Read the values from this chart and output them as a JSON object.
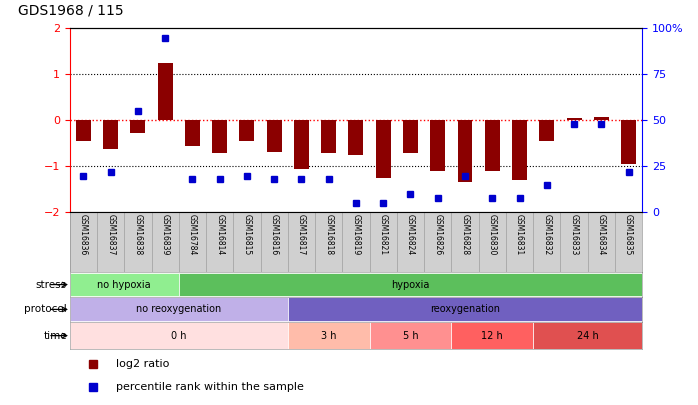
{
  "title": "GDS1968 / 115",
  "samples": [
    "GSM16836",
    "GSM16837",
    "GSM16838",
    "GSM16839",
    "GSM16784",
    "GSM16814",
    "GSM16815",
    "GSM16816",
    "GSM16817",
    "GSM16818",
    "GSM16819",
    "GSM16821",
    "GSM16824",
    "GSM16826",
    "GSM16828",
    "GSM16830",
    "GSM16831",
    "GSM16832",
    "GSM16833",
    "GSM16834",
    "GSM16835"
  ],
  "log2_ratio": [
    -0.45,
    -0.62,
    -0.28,
    1.25,
    -0.55,
    -0.72,
    -0.45,
    -0.68,
    -1.05,
    -0.72,
    -0.75,
    -1.25,
    -0.72,
    -1.1,
    -1.35,
    -1.1,
    -1.3,
    -0.45,
    0.05,
    0.08,
    -0.95
  ],
  "percentile": [
    20,
    22,
    55,
    95,
    18,
    18,
    20,
    18,
    18,
    18,
    5,
    5,
    10,
    8,
    20,
    8,
    8,
    15,
    48,
    48,
    22
  ],
  "bar_color": "#8B0000",
  "dot_color": "#0000CD",
  "ylim": [
    -2,
    2
  ],
  "yticks_left": [
    -2,
    -1,
    0,
    1,
    2
  ],
  "yticks_right_vals": [
    0,
    25,
    50,
    75,
    100
  ],
  "yticks_right_labels": [
    "0",
    "25",
    "50",
    "75",
    "100%"
  ],
  "stress_groups": [
    {
      "label": "no hypoxia",
      "start": 0,
      "end": 4,
      "color": "#90EE90"
    },
    {
      "label": "hypoxia",
      "start": 4,
      "end": 21,
      "color": "#5CBF5C"
    }
  ],
  "protocol_groups": [
    {
      "label": "no reoxygenation",
      "start": 0,
      "end": 8,
      "color": "#C0B0E8"
    },
    {
      "label": "reoxygenation",
      "start": 8,
      "end": 21,
      "color": "#7060C0"
    }
  ],
  "time_groups": [
    {
      "label": "0 h",
      "start": 0,
      "end": 8,
      "color": "#FFE0E0"
    },
    {
      "label": "3 h",
      "start": 8,
      "end": 11,
      "color": "#FFBCAA"
    },
    {
      "label": "5 h",
      "start": 11,
      "end": 14,
      "color": "#FF9090"
    },
    {
      "label": "12 h",
      "start": 14,
      "end": 17,
      "color": "#FF6060"
    },
    {
      "label": "24 h",
      "start": 17,
      "end": 21,
      "color": "#E05050"
    }
  ],
  "legend_red_label": "log2 ratio",
  "legend_blue_label": "percentile rank within the sample",
  "row_labels": [
    "stress",
    "protocol",
    "time"
  ],
  "sample_bg_color": "#D0D0D0",
  "sample_border_color": "#999999",
  "bar_width": 0.55
}
